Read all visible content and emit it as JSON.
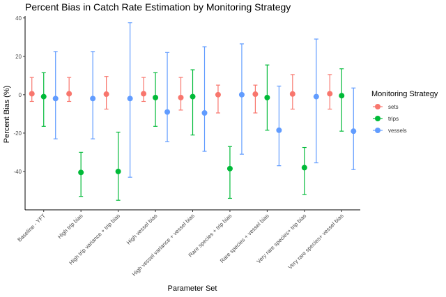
{
  "chart_data": {
    "type": "scatter",
    "title": "Percent Bias in Catch Rate Estimation by Monitoring Strategy",
    "xlabel": "Parameter Set",
    "ylabel": "Percent Bias (%)",
    "ylim": [
      -60,
      41
    ],
    "yticks": [
      -40,
      -20,
      0,
      20,
      40
    ],
    "grid": false,
    "legend": {
      "title": "Monitoring Strategy",
      "position": "right"
    },
    "categories": [
      "Baseline - YFT",
      "High trip bias",
      "High trip variance + trip bias",
      "High vessel bias",
      "High vessel variance + vessel bias",
      "Rare species + trip bias",
      "Rare species + vessel bias",
      "Very rare species+ trip bias",
      "Very rare species+ vessel bias"
    ],
    "series": [
      {
        "name": "sets",
        "color": "#F8766D",
        "values": [
          0.5,
          0.5,
          0.3,
          0.5,
          -1.5,
          0.0,
          0.3,
          0.4,
          0.5
        ],
        "lower": [
          -3.5,
          -3.5,
          -7.5,
          -3.5,
          -8.0,
          -9.5,
          -9.5,
          -7.5,
          -7.5
        ],
        "upper": [
          9.0,
          9.0,
          9.5,
          9.0,
          9.0,
          5.0,
          5.0,
          10.5,
          10.5
        ]
      },
      {
        "name": "trips",
        "color": "#00BA38",
        "values": [
          -1.0,
          -40.5,
          -40.0,
          -1.5,
          -1.0,
          -38.5,
          -1.5,
          -38.0,
          -0.5
        ],
        "lower": [
          -16.5,
          -53.0,
          -55.0,
          -16.5,
          -21.0,
          -54.0,
          -18.5,
          -52.0,
          -19.0
        ],
        "upper": [
          11.5,
          -30.0,
          -19.5,
          11.5,
          13.0,
          -27.0,
          15.5,
          -27.5,
          13.5
        ]
      },
      {
        "name": "vessels",
        "color": "#619CFF",
        "values": [
          -2.0,
          -2.0,
          -2.0,
          -9.0,
          -9.5,
          0.0,
          -18.5,
          -1.0,
          -19.0
        ],
        "lower": [
          -23.0,
          -23.0,
          -43.0,
          -24.5,
          -29.5,
          -31.0,
          -37.0,
          -35.5,
          -39.0
        ],
        "upper": [
          22.5,
          22.5,
          37.5,
          22.0,
          25.0,
          26.5,
          4.5,
          29.0,
          3.5
        ]
      }
    ]
  }
}
